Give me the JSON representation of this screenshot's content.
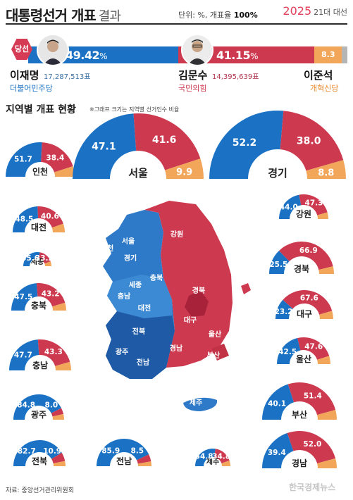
{
  "header": {
    "title": "대통령선거 개표",
    "title_suffix": "결과",
    "unit_prefix": "단위: %, 개표율",
    "unit_rate": "100%",
    "year": "2025",
    "election": "21대 대선"
  },
  "winner_badge": "당선",
  "candidates": [
    {
      "name": "이재명",
      "votes": "17,287,513표",
      "party": "더불어민주당",
      "pct": "49.42",
      "color": "#1b72c4"
    },
    {
      "name": "김문수",
      "votes": "14,395,639표",
      "party": "국민의힘",
      "pct": "41.15",
      "color": "#cd3a50"
    },
    {
      "name": "이준석",
      "party": "개혁신당",
      "pct": "8.3",
      "color": "#f2a65a"
    }
  ],
  "percent_sign": "%",
  "section": {
    "title": "지역별 개표 현황",
    "note": "※그래프 크기는 지역별 선거인수 비율"
  },
  "chart_data": {
    "type": "pie",
    "subtype": "semicircle-per-region",
    "series_order": [
      "이재명",
      "김문수",
      "이준석"
    ],
    "colors": {
      "lee": "#1b72c4",
      "kim": "#cd3a50",
      "lj": "#f2a65a"
    },
    "regions": [
      {
        "name": "인천",
        "lee": 51.7,
        "kim": 38.4
      },
      {
        "name": "서울",
        "lee": 47.1,
        "kim": 41.6,
        "lj": 9.9
      },
      {
        "name": "경기",
        "lee": 52.2,
        "kim": 38.0,
        "lj": 8.8
      },
      {
        "name": "대전",
        "lee": 48.5,
        "kim": 40.6
      },
      {
        "name": "강원",
        "lee": 44.0,
        "kim": 47.3
      },
      {
        "name": "세종",
        "lee": 55.6,
        "kim": 33.2
      },
      {
        "name": "경북",
        "lee": 25.5,
        "kim": 66.9
      },
      {
        "name": "충북",
        "lee": 47.5,
        "kim": 43.2
      },
      {
        "name": "대구",
        "lee": 23.2,
        "kim": 67.6
      },
      {
        "name": "충남",
        "lee": 47.7,
        "kim": 43.3
      },
      {
        "name": "울산",
        "lee": 42.5,
        "kim": 47.6
      },
      {
        "name": "광주",
        "lee": 84.8,
        "kim": 8.0
      },
      {
        "name": "부산",
        "lee": 40.1,
        "kim": 51.4
      },
      {
        "name": "전북",
        "lee": 82.7,
        "kim": 10.9
      },
      {
        "name": "전남",
        "lee": 85.9,
        "kim": 8.5
      },
      {
        "name": "제주",
        "lee": 54.8,
        "kim": 34.8
      },
      {
        "name": "경남",
        "lee": 39.4,
        "kim": 52.0
      }
    ]
  },
  "map_labels": [
    "인천",
    "서울",
    "경기",
    "강원",
    "세종",
    "충북",
    "충남",
    "대전",
    "경북",
    "대구",
    "전북",
    "울산",
    "광주",
    "전남",
    "경남",
    "부산",
    "제주"
  ],
  "footer": {
    "source": "자료: 중앙선거관리위원회",
    "watermark": "한국경제뉴스"
  }
}
